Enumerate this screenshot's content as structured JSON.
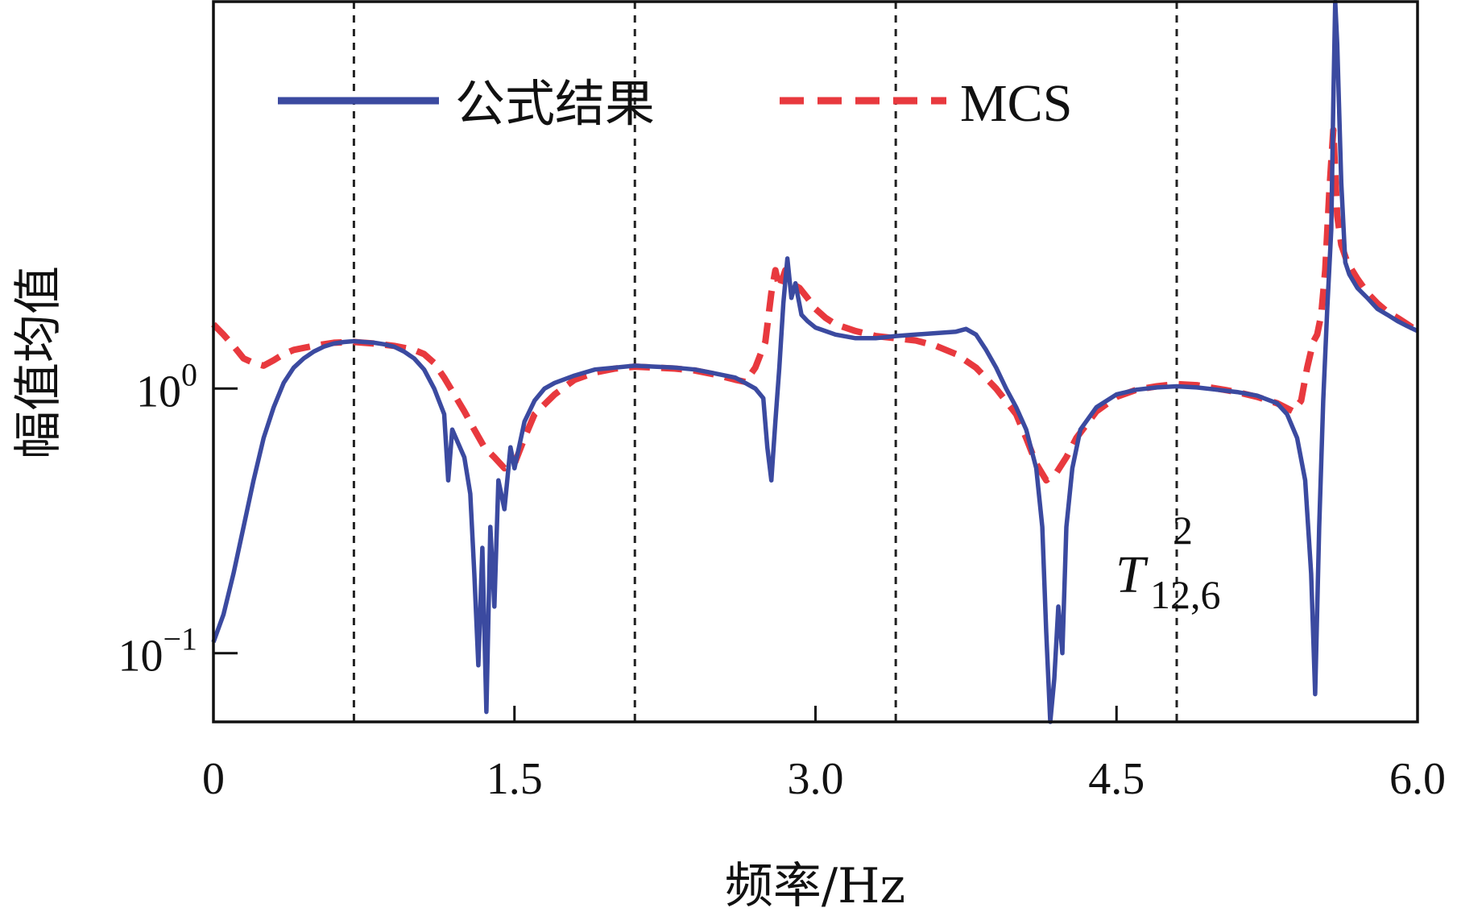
{
  "chart_data": {
    "type": "line",
    "title": "",
    "xlabel": "频率/Hz",
    "ylabel": "幅值均值",
    "x_scale": "linear",
    "y_scale": "log",
    "xlim": [
      0,
      6.0
    ],
    "ylim": [
      0.055,
      29
    ],
    "x_ticks": [
      "0",
      "1.5",
      "3.0",
      "4.5",
      "6.0"
    ],
    "x_tick_values": [
      0,
      1.5,
      3.0,
      4.5,
      6.0
    ],
    "y_ticks": [
      {
        "value": 1,
        "base": "10",
        "exp": "0"
      },
      {
        "value": 0.1,
        "base": "10",
        "exp": "−1"
      }
    ],
    "vertical_reference_lines": [
      0.7,
      2.1,
      3.4,
      4.8
    ],
    "legend_position": "top",
    "annotation": {
      "base": "T",
      "superscript": "2",
      "subscript": "12,6"
    },
    "series": [
      {
        "name": "公式结果",
        "color": "#3b4aa0",
        "style": "solid",
        "points": [
          [
            0.0,
            0.11
          ],
          [
            0.05,
            0.14
          ],
          [
            0.1,
            0.2
          ],
          [
            0.15,
            0.3
          ],
          [
            0.2,
            0.45
          ],
          [
            0.25,
            0.65
          ],
          [
            0.3,
            0.85
          ],
          [
            0.35,
            1.05
          ],
          [
            0.4,
            1.2
          ],
          [
            0.45,
            1.3
          ],
          [
            0.5,
            1.38
          ],
          [
            0.55,
            1.44
          ],
          [
            0.6,
            1.48
          ],
          [
            0.65,
            1.5
          ],
          [
            0.7,
            1.51
          ],
          [
            0.75,
            1.5
          ],
          [
            0.8,
            1.49
          ],
          [
            0.85,
            1.47
          ],
          [
            0.9,
            1.44
          ],
          [
            0.95,
            1.38
          ],
          [
            1.0,
            1.3
          ],
          [
            1.05,
            1.18
          ],
          [
            1.1,
            1.0
          ],
          [
            1.15,
            0.8
          ],
          [
            1.17,
            0.45
          ],
          [
            1.19,
            0.7
          ],
          [
            1.22,
            0.62
          ],
          [
            1.25,
            0.55
          ],
          [
            1.28,
            0.4
          ],
          [
            1.3,
            0.2
          ],
          [
            1.32,
            0.09
          ],
          [
            1.34,
            0.25
          ],
          [
            1.36,
            0.06
          ],
          [
            1.38,
            0.3
          ],
          [
            1.4,
            0.15
          ],
          [
            1.42,
            0.45
          ],
          [
            1.45,
            0.35
          ],
          [
            1.48,
            0.6
          ],
          [
            1.5,
            0.5
          ],
          [
            1.55,
            0.75
          ],
          [
            1.6,
            0.9
          ],
          [
            1.65,
            1.0
          ],
          [
            1.7,
            1.05
          ],
          [
            1.8,
            1.12
          ],
          [
            1.9,
            1.18
          ],
          [
            2.0,
            1.2
          ],
          [
            2.1,
            1.22
          ],
          [
            2.2,
            1.21
          ],
          [
            2.3,
            1.2
          ],
          [
            2.4,
            1.18
          ],
          [
            2.5,
            1.14
          ],
          [
            2.6,
            1.1
          ],
          [
            2.65,
            1.05
          ],
          [
            2.7,
            1.0
          ],
          [
            2.74,
            0.92
          ],
          [
            2.76,
            0.6
          ],
          [
            2.78,
            0.45
          ],
          [
            2.8,
            0.75
          ],
          [
            2.82,
            1.2
          ],
          [
            2.84,
            2.1
          ],
          [
            2.86,
            3.1
          ],
          [
            2.88,
            2.2
          ],
          [
            2.9,
            2.5
          ],
          [
            2.93,
            1.9
          ],
          [
            2.96,
            1.8
          ],
          [
            3.0,
            1.7
          ],
          [
            3.1,
            1.6
          ],
          [
            3.2,
            1.55
          ],
          [
            3.3,
            1.55
          ],
          [
            3.4,
            1.58
          ],
          [
            3.5,
            1.6
          ],
          [
            3.6,
            1.62
          ],
          [
            3.7,
            1.64
          ],
          [
            3.75,
            1.68
          ],
          [
            3.8,
            1.6
          ],
          [
            3.85,
            1.4
          ],
          [
            3.9,
            1.2
          ],
          [
            3.95,
            1.0
          ],
          [
            4.0,
            0.85
          ],
          [
            4.05,
            0.7
          ],
          [
            4.1,
            0.5
          ],
          [
            4.13,
            0.3
          ],
          [
            4.15,
            0.12
          ],
          [
            4.17,
            0.055
          ],
          [
            4.19,
            0.08
          ],
          [
            4.21,
            0.15
          ],
          [
            4.23,
            0.1
          ],
          [
            4.25,
            0.3
          ],
          [
            4.28,
            0.5
          ],
          [
            4.32,
            0.7
          ],
          [
            4.4,
            0.85
          ],
          [
            4.5,
            0.95
          ],
          [
            4.6,
            0.99
          ],
          [
            4.7,
            1.01
          ],
          [
            4.8,
            1.02
          ],
          [
            4.9,
            1.01
          ],
          [
            5.0,
            0.99
          ],
          [
            5.1,
            0.97
          ],
          [
            5.2,
            0.94
          ],
          [
            5.3,
            0.88
          ],
          [
            5.35,
            0.8
          ],
          [
            5.4,
            0.65
          ],
          [
            5.44,
            0.45
          ],
          [
            5.47,
            0.2
          ],
          [
            5.49,
            0.07
          ],
          [
            5.51,
            0.3
          ],
          [
            5.53,
            0.9
          ],
          [
            5.55,
            2.0
          ],
          [
            5.57,
            4.0
          ],
          [
            5.58,
            12.0
          ],
          [
            5.59,
            29.0
          ],
          [
            5.6,
            20.0
          ],
          [
            5.62,
            6.0
          ],
          [
            5.64,
            3.0
          ],
          [
            5.66,
            2.7
          ],
          [
            5.7,
            2.4
          ],
          [
            5.75,
            2.2
          ],
          [
            5.8,
            2.0
          ],
          [
            5.85,
            1.9
          ],
          [
            5.9,
            1.8
          ],
          [
            5.95,
            1.72
          ],
          [
            6.0,
            1.65
          ]
        ]
      },
      {
        "name": "MCS",
        "color": "#e8393e",
        "style": "dashed",
        "points": [
          [
            0.0,
            1.75
          ],
          [
            0.05,
            1.6
          ],
          [
            0.1,
            1.45
          ],
          [
            0.15,
            1.3
          ],
          [
            0.2,
            1.25
          ],
          [
            0.25,
            1.22
          ],
          [
            0.3,
            1.28
          ],
          [
            0.35,
            1.35
          ],
          [
            0.4,
            1.4
          ],
          [
            0.5,
            1.45
          ],
          [
            0.6,
            1.49
          ],
          [
            0.7,
            1.5
          ],
          [
            0.8,
            1.48
          ],
          [
            0.9,
            1.45
          ],
          [
            1.0,
            1.4
          ],
          [
            1.05,
            1.35
          ],
          [
            1.1,
            1.25
          ],
          [
            1.15,
            1.1
          ],
          [
            1.2,
            0.95
          ],
          [
            1.25,
            0.82
          ],
          [
            1.3,
            0.7
          ],
          [
            1.35,
            0.6
          ],
          [
            1.4,
            0.55
          ],
          [
            1.45,
            0.5
          ],
          [
            1.5,
            0.52
          ],
          [
            1.55,
            0.65
          ],
          [
            1.6,
            0.8
          ],
          [
            1.7,
            0.95
          ],
          [
            1.8,
            1.08
          ],
          [
            1.9,
            1.15
          ],
          [
            2.0,
            1.19
          ],
          [
            2.1,
            1.21
          ],
          [
            2.2,
            1.2
          ],
          [
            2.3,
            1.19
          ],
          [
            2.4,
            1.17
          ],
          [
            2.5,
            1.13
          ],
          [
            2.6,
            1.08
          ],
          [
            2.65,
            1.06
          ],
          [
            2.7,
            1.2
          ],
          [
            2.75,
            1.5
          ],
          [
            2.78,
            2.3
          ],
          [
            2.8,
            2.8
          ],
          [
            2.82,
            2.4
          ],
          [
            2.85,
            2.8
          ],
          [
            2.88,
            2.5
          ],
          [
            2.92,
            2.4
          ],
          [
            2.96,
            2.2
          ],
          [
            3.0,
            2.0
          ],
          [
            3.05,
            1.85
          ],
          [
            3.1,
            1.75
          ],
          [
            3.2,
            1.65
          ],
          [
            3.3,
            1.58
          ],
          [
            3.4,
            1.55
          ],
          [
            3.5,
            1.52
          ],
          [
            3.6,
            1.45
          ],
          [
            3.7,
            1.35
          ],
          [
            3.8,
            1.2
          ],
          [
            3.9,
            1.0
          ],
          [
            4.0,
            0.8
          ],
          [
            4.05,
            0.65
          ],
          [
            4.1,
            0.52
          ],
          [
            4.15,
            0.45
          ],
          [
            4.2,
            0.48
          ],
          [
            4.25,
            0.55
          ],
          [
            4.3,
            0.65
          ],
          [
            4.4,
            0.82
          ],
          [
            4.5,
            0.93
          ],
          [
            4.6,
            0.99
          ],
          [
            4.7,
            1.02
          ],
          [
            4.8,
            1.04
          ],
          [
            4.9,
            1.03
          ],
          [
            5.0,
            1.0
          ],
          [
            5.1,
            0.97
          ],
          [
            5.2,
            0.93
          ],
          [
            5.3,
            0.88
          ],
          [
            5.38,
            0.82
          ],
          [
            5.42,
            0.9
          ],
          [
            5.45,
            1.2
          ],
          [
            5.48,
            1.5
          ],
          [
            5.5,
            1.6
          ],
          [
            5.52,
            1.9
          ],
          [
            5.54,
            2.8
          ],
          [
            5.56,
            5.5
          ],
          [
            5.58,
            9.5
          ],
          [
            5.6,
            4.5
          ],
          [
            5.62,
            3.5
          ],
          [
            5.65,
            3.0
          ],
          [
            5.7,
            2.6
          ],
          [
            5.75,
            2.3
          ],
          [
            5.8,
            2.1
          ],
          [
            5.85,
            1.95
          ],
          [
            5.9,
            1.85
          ],
          [
            5.95,
            1.75
          ],
          [
            6.0,
            1.65
          ]
        ]
      }
    ]
  }
}
